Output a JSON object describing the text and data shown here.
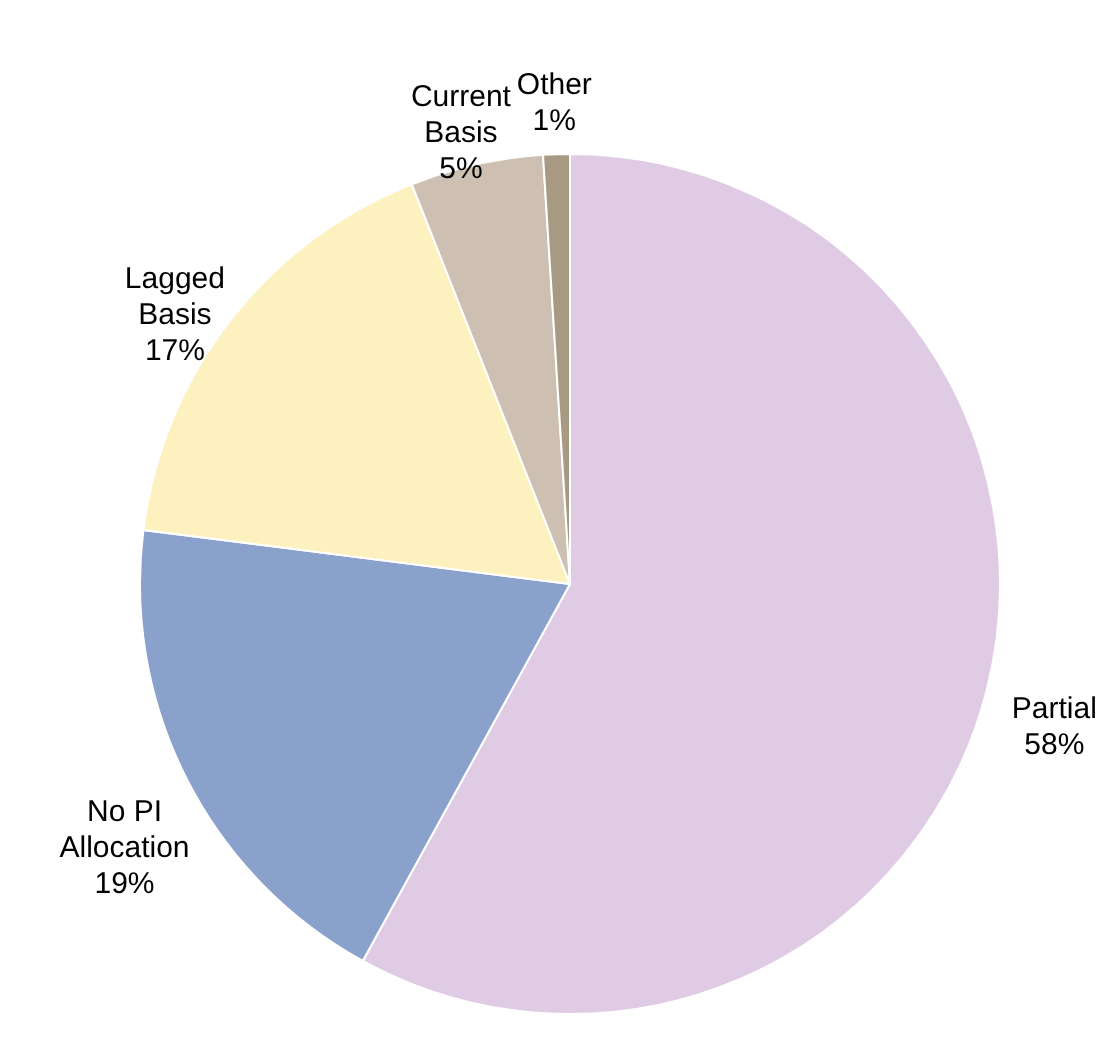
{
  "chart_data": {
    "type": "pie",
    "categories": [
      "Partial",
      "No PI Allocation",
      "Lagged Basis",
      "Current Basis",
      "Other"
    ],
    "values": [
      58,
      19,
      17,
      5,
      1
    ],
    "colors": [
      "#dfcbe3",
      "#8aa1cc",
      "#fdf1c0",
      "#cdbfb2",
      "#a89a82"
    ],
    "value_labels": [
      "58%",
      "19%",
      "17%",
      "5%",
      "1%"
    ]
  }
}
